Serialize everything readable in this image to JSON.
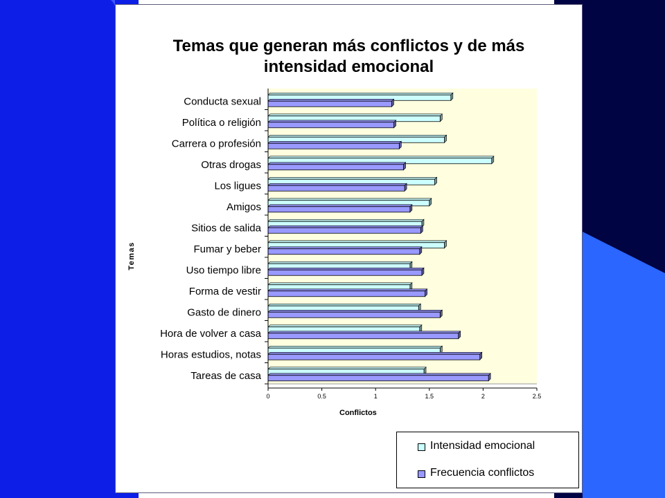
{
  "chart_data": {
    "type": "bar",
    "orientation": "horizontal",
    "title_lines": [
      "Temas que generan más conflictos y de más",
      "intensidad emocional"
    ],
    "xlabel": "Conflictos",
    "ylabel": "Temas",
    "xlim": [
      0,
      2.5
    ],
    "xticks": [
      "0",
      "0.5",
      "1",
      "1.5",
      "2",
      "2.5"
    ],
    "xtick_values": [
      0,
      0.5,
      1,
      1.5,
      2,
      2.5
    ],
    "categories": [
      "Conducta sexual",
      "Política o religión",
      "Carrera o profesión",
      "Otras drogas",
      "Los ligues",
      "Amigos",
      "Sitios de salida",
      "Fumar y beber",
      "Uso tiempo libre",
      "Forma de vestir",
      "Gasto de dinero",
      "Hora de volver a casa",
      "Horas estudios, notas",
      "Tareas de casa"
    ],
    "series": [
      {
        "name": "Intensidad emocional",
        "color": "#ccffff",
        "values": [
          1.7,
          1.6,
          1.64,
          2.08,
          1.55,
          1.5,
          1.43,
          1.64,
          1.32,
          1.32,
          1.4,
          1.41,
          1.6,
          1.45
        ]
      },
      {
        "name": "Frecuencia conflictos",
        "color": "#9999ff",
        "values": [
          1.15,
          1.17,
          1.22,
          1.26,
          1.27,
          1.32,
          1.42,
          1.41,
          1.43,
          1.46,
          1.6,
          1.77,
          1.97,
          2.05
        ]
      }
    ],
    "grid": false,
    "plot_background": "#ffffe0",
    "legend_position": "bottom-right"
  },
  "colors": {
    "left_panel": "#0d1fe6",
    "right_panel": "#000442",
    "right_stripe": "#2a66ff",
    "card": "#ffffff"
  }
}
